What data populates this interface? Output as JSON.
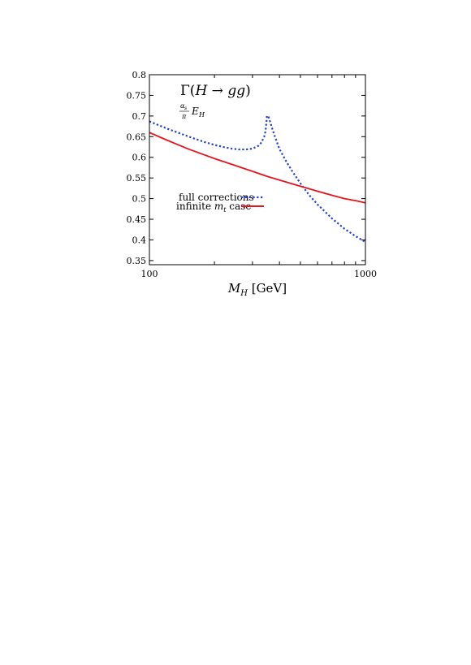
{
  "chart_data": {
    "type": "line",
    "xlabel": "M_H [GeV]",
    "ylabel": "",
    "xscale": "log",
    "xlim": [
      100,
      1000
    ],
    "ylim": [
      0.34,
      0.8
    ],
    "xticks_major": [
      100,
      1000
    ],
    "xtick_labels": [
      "100",
      "1000"
    ],
    "xticks_minor": [
      200,
      300,
      400,
      500,
      600,
      700,
      800,
      900
    ],
    "yticks": [
      0.35,
      0.4,
      0.45,
      0.5,
      0.55,
      0.6,
      0.65,
      0.7,
      0.75,
      0.8
    ],
    "ytick_labels": [
      "0.35",
      "0.4",
      "0.45",
      "0.5",
      "0.55",
      "0.6",
      "0.65",
      "0.7",
      "0.75",
      "0.8"
    ],
    "grid": false,
    "legend_position": "center-left",
    "annotation_main": "Γ(H → gg)",
    "annotation_sub": "(αs/π) EH",
    "series": [
      {
        "name": "full corrections",
        "color": "#1f3fd6",
        "dash": "dotted",
        "x": [
          100,
          110,
          120,
          140,
          160,
          180,
          200,
          220,
          240,
          260,
          280,
          300,
          320,
          330,
          340,
          345,
          350,
          355,
          360,
          370,
          380,
          400,
          430,
          460,
          500,
          550,
          600,
          700,
          800,
          900,
          1000
        ],
        "y": [
          0.687,
          0.678,
          0.67,
          0.657,
          0.646,
          0.637,
          0.63,
          0.625,
          0.621,
          0.619,
          0.619,
          0.621,
          0.628,
          0.636,
          0.65,
          0.664,
          0.7,
          0.7,
          0.69,
          0.67,
          0.652,
          0.62,
          0.59,
          0.565,
          0.537,
          0.508,
          0.486,
          0.452,
          0.427,
          0.409,
          0.395
        ]
      },
      {
        "name": "infinite m_t case",
        "color": "#e8141a",
        "dash": "solid",
        "x": [
          100,
          120,
          150,
          200,
          250,
          300,
          350,
          400,
          500,
          600,
          700,
          800,
          900,
          1000
        ],
        "y": [
          0.66,
          0.642,
          0.621,
          0.597,
          0.58,
          0.566,
          0.554,
          0.545,
          0.53,
          0.518,
          0.508,
          0.5,
          0.495,
          0.49
        ]
      }
    ]
  }
}
